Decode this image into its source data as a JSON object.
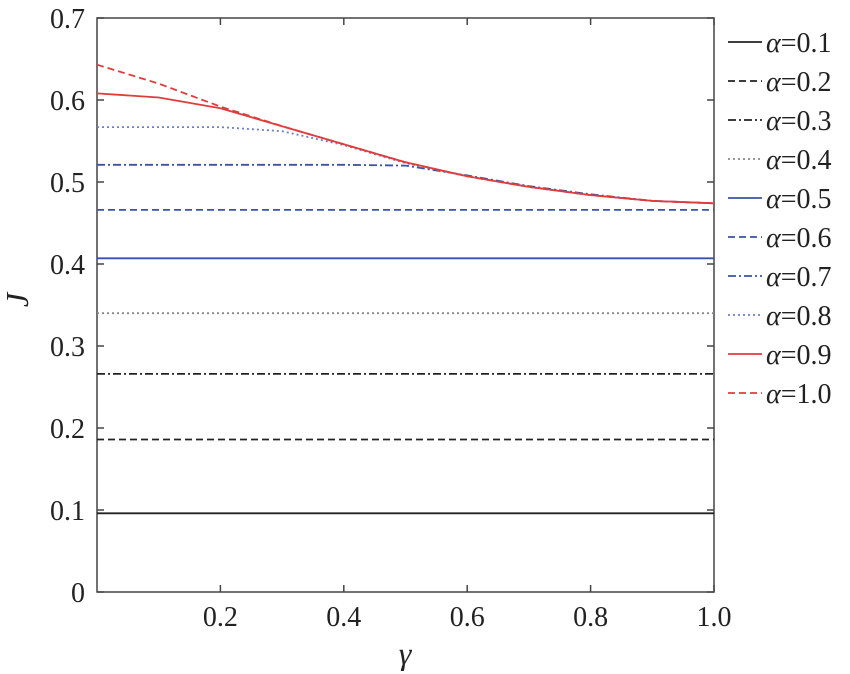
{
  "chart_data": {
    "type": "line",
    "xlabel": "γ",
    "ylabel": "J",
    "xlim": [
      0,
      1.0
    ],
    "ylim": [
      0,
      0.7
    ],
    "x_ticks": [
      "0.2",
      "0.4",
      "0.6",
      "0.8",
      "1.0"
    ],
    "y_ticks": [
      "0",
      "0.1",
      "0.2",
      "0.3",
      "0.4",
      "0.5",
      "0.6",
      "0.7"
    ],
    "grid": false,
    "legend_position": "right",
    "x": [
      0,
      0.1,
      0.2,
      0.3,
      0.4,
      0.5,
      0.6,
      0.7,
      0.8,
      0.9,
      1.0
    ],
    "series": [
      {
        "name": "α=0.1",
        "symbol": "α",
        "value_text": "=0.1",
        "color": "#222222",
        "dash": "solid",
        "values": [
          0.096,
          0.096,
          0.096,
          0.096,
          0.096,
          0.096,
          0.096,
          0.096,
          0.096,
          0.096,
          0.096
        ]
      },
      {
        "name": "α=0.2",
        "symbol": "α",
        "value_text": "=0.2",
        "color": "#222222",
        "dash": "dashed",
        "values": [
          0.186,
          0.186,
          0.186,
          0.186,
          0.186,
          0.186,
          0.186,
          0.186,
          0.186,
          0.186,
          0.186
        ]
      },
      {
        "name": "α=0.3",
        "symbol": "α",
        "value_text": "=0.3",
        "color": "#222222",
        "dash": "dashdot",
        "values": [
          0.266,
          0.266,
          0.266,
          0.266,
          0.266,
          0.266,
          0.266,
          0.266,
          0.266,
          0.266,
          0.266
        ]
      },
      {
        "name": "α=0.4",
        "symbol": "α",
        "value_text": "=0.4",
        "color": "#888888",
        "dash": "dotted",
        "values": [
          0.34,
          0.34,
          0.34,
          0.34,
          0.34,
          0.34,
          0.34,
          0.34,
          0.34,
          0.34,
          0.34
        ]
      },
      {
        "name": "α=0.5",
        "symbol": "α",
        "value_text": "=0.5",
        "color": "#3a52a8",
        "dash": "solid",
        "values": [
          0.407,
          0.407,
          0.407,
          0.407,
          0.407,
          0.407,
          0.407,
          0.407,
          0.407,
          0.407,
          0.407
        ]
      },
      {
        "name": "α=0.6",
        "symbol": "α",
        "value_text": "=0.6",
        "color": "#3a52a8",
        "dash": "dashed",
        "values": [
          0.466,
          0.466,
          0.466,
          0.466,
          0.466,
          0.466,
          0.466,
          0.466,
          0.466,
          0.466,
          0.466
        ]
      },
      {
        "name": "α=0.7",
        "symbol": "α",
        "value_text": "=0.7",
        "color": "#3a52a8",
        "dash": "dashdot",
        "values": [
          0.521,
          0.521,
          0.521,
          0.521,
          0.521,
          0.52,
          0.508,
          0.495,
          0.485,
          0.477,
          0.474
        ]
      },
      {
        "name": "α=0.8",
        "symbol": "α",
        "value_text": "=0.8",
        "color": "#6b7fd0",
        "dash": "dotted",
        "values": [
          0.567,
          0.567,
          0.567,
          0.562,
          0.545,
          0.523,
          0.507,
          0.494,
          0.484,
          0.477,
          0.474
        ]
      },
      {
        "name": "α=0.9",
        "symbol": "α",
        "value_text": "=0.9",
        "color": "#e03c3c",
        "dash": "solid",
        "values": [
          0.608,
          0.603,
          0.59,
          0.568,
          0.546,
          0.524,
          0.507,
          0.494,
          0.484,
          0.477,
          0.474
        ]
      },
      {
        "name": "α=1.0",
        "symbol": "α",
        "value_text": "=1.0",
        "color": "#e03c3c",
        "dash": "dashed",
        "values": [
          0.643,
          0.62,
          0.592,
          0.568,
          0.546,
          0.524,
          0.507,
          0.494,
          0.484,
          0.477,
          0.474
        ]
      }
    ]
  }
}
